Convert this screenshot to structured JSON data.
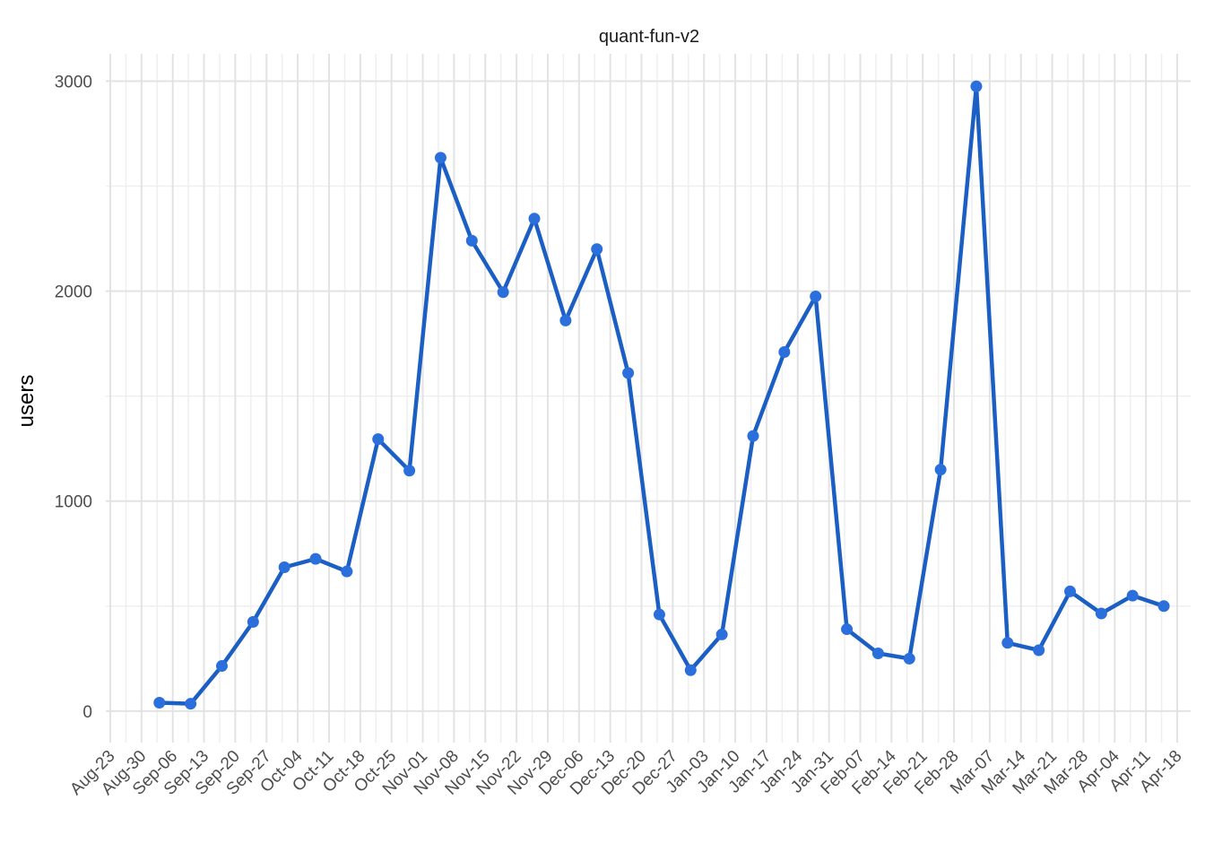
{
  "chart_data": {
    "type": "line",
    "title": "quant-fun-v2",
    "xlabel": "",
    "ylabel": "users",
    "grid": true,
    "legend": "none",
    "colors": {
      "line": "#1c5fc4",
      "point": "#2a6fdb",
      "grid_major": "#e3e3e3",
      "grid_minor": "#efefef"
    },
    "x_ticks": [
      "Aug-23",
      "Aug-30",
      "Sep-06",
      "Sep-13",
      "Sep-20",
      "Sep-27",
      "Oct-04",
      "Oct-11",
      "Oct-18",
      "Oct-25",
      "Nov-01",
      "Nov-08",
      "Nov-15",
      "Nov-22",
      "Nov-29",
      "Dec-06",
      "Dec-13",
      "Dec-20",
      "Dec-27",
      "Jan-03",
      "Jan-10",
      "Jan-17",
      "Jan-24",
      "Jan-31",
      "Feb-07",
      "Feb-14",
      "Feb-21",
      "Feb-28",
      "Mar-07",
      "Mar-14",
      "Mar-21",
      "Mar-28",
      "Apr-04",
      "Apr-11",
      "Apr-18"
    ],
    "y_ticks": [
      0,
      1000,
      2000,
      3000
    ],
    "ylim": [
      -150,
      3130
    ],
    "x": [
      "Sep-03",
      "Sep-10",
      "Sep-17",
      "Sep-24",
      "Oct-01",
      "Oct-08",
      "Oct-15",
      "Oct-22",
      "Oct-29",
      "Nov-05",
      "Nov-12",
      "Nov-19",
      "Nov-26",
      "Dec-03",
      "Dec-10",
      "Dec-17",
      "Dec-24",
      "Dec-31",
      "Jan-07",
      "Jan-14",
      "Jan-21",
      "Jan-28",
      "Feb-04",
      "Feb-11",
      "Feb-18",
      "Feb-25",
      "Mar-04",
      "Mar-11",
      "Mar-18",
      "Mar-25",
      "Apr-01",
      "Apr-08",
      "Apr-15"
    ],
    "values": [
      40,
      35,
      215,
      425,
      685,
      725,
      665,
      1295,
      1145,
      2635,
      2240,
      1995,
      2345,
      1860,
      2200,
      1610,
      460,
      195,
      365,
      1310,
      1710,
      1975,
      390,
      275,
      250,
      1150,
      2975,
      325,
      290,
      570,
      465,
      550,
      500
    ]
  }
}
